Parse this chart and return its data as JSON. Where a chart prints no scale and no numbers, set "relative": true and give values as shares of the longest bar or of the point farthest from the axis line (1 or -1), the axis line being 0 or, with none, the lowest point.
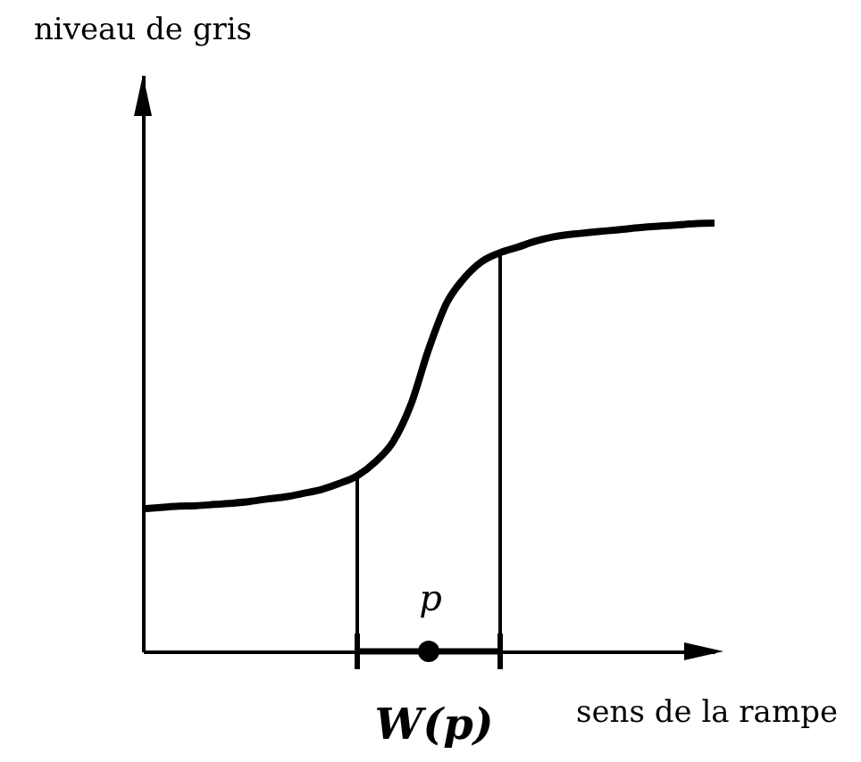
{
  "chart_data": {
    "type": "line",
    "xlabel": "sens de la rampe",
    "relative": true,
    "color": "#000000",
    "categories": [
      null,
      null,
      null,
      null,
      null,
      null,
      null,
      null,
      null,
      null,
      null,
      null,
      null,
      null,
      null,
      null,
      null,
      null,
      null,
      null,
      null,
      null,
      null,
      null,
      null,
      null,
      null,
      null,
      null,
      null,
      null,
      null,
      null
    ],
    "values": [
      0.333,
      0.336,
      0.339,
      0.34,
      0.343,
      0.346,
      0.35,
      0.356,
      0.361,
      0.369,
      0.378,
      0.392,
      0.41,
      0.442,
      0.489,
      0.576,
      0.706,
      0.813,
      0.872,
      0.911,
      0.931,
      0.944,
      0.958,
      0.968,
      0.974,
      0.978,
      0.982,
      0.986,
      0.99,
      0.993,
      0.996,
      0.999,
      1.0
    ],
    "annotations": [
      "niveau de gris",
      "p",
      "W(p)"
    ]
  }
}
